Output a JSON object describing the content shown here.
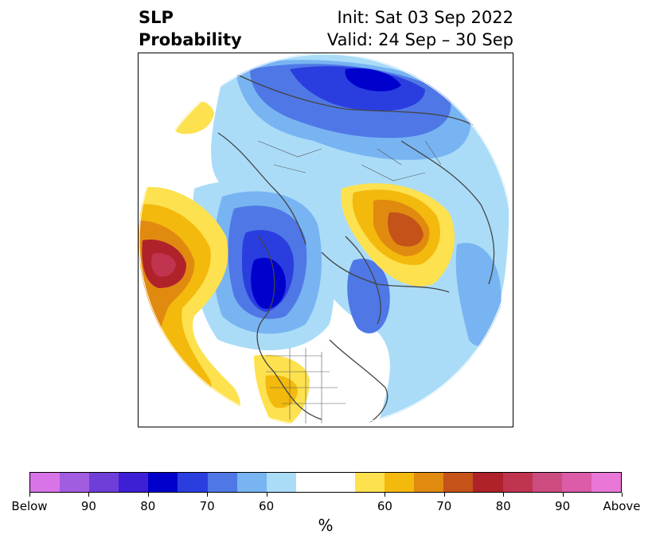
{
  "title": {
    "left_line1": "SLP",
    "left_line2": "Probability",
    "right_line1": "Init: Sat 03 Sep 2022",
    "right_line2": "Valid: 24 Sep – 30 Sep"
  },
  "colorbar": {
    "colors": [
      "#d974e8",
      "#a25ce0",
      "#6f3ed9",
      "#3d1fd6",
      "#0000cc",
      "#2a3ee0",
      "#4f78e6",
      "#78b4f2",
      "#aadcf8",
      "#ffffff",
      "#ffffff",
      "#fde14e",
      "#f3b90d",
      "#e18a10",
      "#c45219",
      "#b0222a",
      "#c03450",
      "#cc4c80",
      "#dc5ca8",
      "#e877d8"
    ],
    "tick_labels": [
      "Below",
      "90",
      "80",
      "70",
      "60",
      "60",
      "70",
      "80",
      "90",
      "Above"
    ],
    "unit_label": "%"
  },
  "map": {
    "projection": "north-polar-stereographic",
    "variable": "sea-level-pressure tercile probability"
  }
}
